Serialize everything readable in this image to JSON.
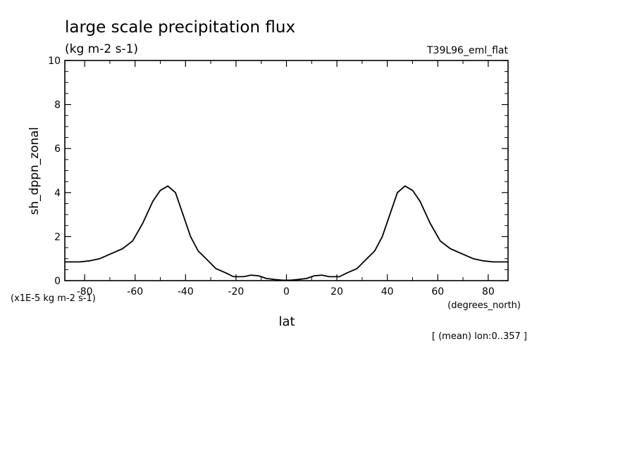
{
  "chart_data": {
    "type": "line",
    "title": "large scale precipitation flux",
    "subtitle": "(kg m-2 s-1)",
    "run_label": "T39L96_eml_flat",
    "ylabel": "sh_dppn_zonal",
    "y_multiplier_label": "(x1E-5 kg m-2 s-1)",
    "xlabel": "lat",
    "x_units": "(degrees_north)",
    "footnote": "[ (mean) lon:0..357 ]",
    "xlim": [
      -87.86,
      87.86
    ],
    "ylim": [
      0,
      10
    ],
    "xticks": [
      -80,
      -60,
      -40,
      -20,
      0,
      20,
      40,
      60,
      80
    ],
    "xtick_labels": [
      "-80",
      "-60",
      "-40",
      "-20",
      "0",
      "20",
      "40",
      "60",
      "80"
    ],
    "yticks": [
      0,
      2,
      4,
      6,
      8,
      10
    ],
    "ytick_labels": [
      "0",
      "2",
      "4",
      "6",
      "8",
      "10"
    ],
    "grid": false,
    "series": [
      {
        "x": [
          -87.86,
          -82.0,
          -78.0,
          -74.0,
          -70.0,
          -65.0,
          -61.0,
          -57.0,
          -53.0,
          -50.0,
          -47.0,
          -44.0,
          -41.0,
          -38.0,
          -35.0,
          -31.0,
          -28.0,
          -24.0,
          -21.0,
          -17.0,
          -14.0,
          -11.0,
          -8.0,
          -4.5,
          -1.5,
          1.5,
          4.5,
          8.0,
          11.0,
          14.0,
          17.0,
          21.0,
          24.0,
          28.0,
          31.0,
          35.0,
          38.0,
          41.0,
          44.0,
          47.0,
          50.0,
          53.0,
          57.0,
          61.0,
          65.0,
          70.0,
          74.0,
          78.0,
          82.0,
          87.86
        ],
        "y": [
          0.85,
          0.85,
          0.9,
          1.0,
          1.2,
          1.45,
          1.8,
          2.6,
          3.6,
          4.1,
          4.3,
          4.0,
          3.0,
          2.0,
          1.35,
          0.9,
          0.55,
          0.35,
          0.18,
          0.18,
          0.25,
          0.22,
          0.1,
          0.05,
          0.02,
          0.02,
          0.05,
          0.1,
          0.22,
          0.25,
          0.18,
          0.18,
          0.35,
          0.55,
          0.9,
          1.35,
          2.0,
          3.0,
          4.0,
          4.3,
          4.1,
          3.6,
          2.6,
          1.8,
          1.45,
          1.2,
          1.0,
          0.9,
          0.85,
          0.85
        ],
        "color": "#000000"
      }
    ]
  }
}
